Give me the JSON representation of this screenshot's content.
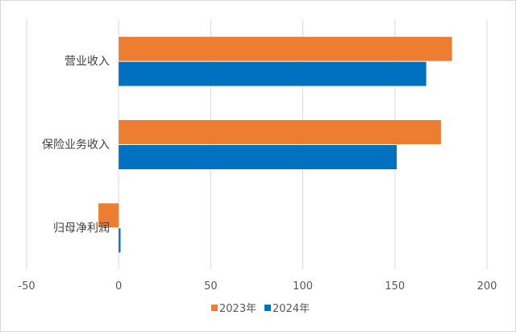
{
  "chart_data": {
    "type": "bar",
    "orientation": "horizontal",
    "categories": [
      "营业收入",
      "保险业务收入",
      "归母净利润"
    ],
    "series": [
      {
        "name": "2023年",
        "color": "#ED7D31",
        "values": [
          181,
          175,
          -11
        ]
      },
      {
        "name": "2024年",
        "color": "#0070C0",
        "values": [
          167,
          151,
          1
        ]
      }
    ],
    "xlim": [
      -50,
      200
    ],
    "xticks": [
      -50,
      0,
      50,
      100,
      150,
      200
    ],
    "grid": "vertical",
    "legend_position": "bottom"
  }
}
